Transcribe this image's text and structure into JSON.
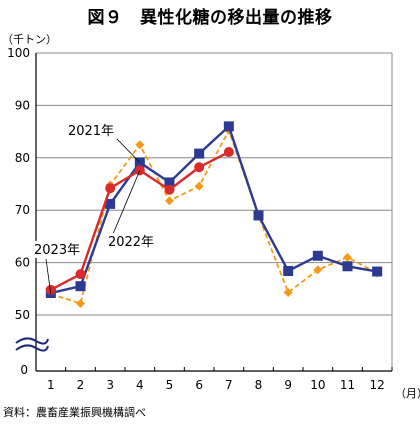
{
  "title": "図９　異性化糖の移出量の推移",
  "y_unit": "（千トン）",
  "x_unit": "（月）",
  "source": "資料：農畜産業振興機構調べ",
  "colors": {
    "2021": "#2c3a92",
    "2022": "#d92b2b",
    "2023": "#f39a1c"
  },
  "chart_data": {
    "type": "line",
    "x": [
      1,
      2,
      3,
      4,
      5,
      6,
      7,
      8,
      9,
      10,
      11,
      12
    ],
    "xlabel": "（月）",
    "ylabel": "（千トン）",
    "ylim": [
      50,
      100
    ],
    "yticks": [
      50,
      60,
      70,
      80,
      90,
      100
    ],
    "axis_break": true,
    "axis_zero_label": "0",
    "grid": "horizontal",
    "series": [
      {
        "name": "2021年",
        "marker": "square",
        "line": "solid",
        "values": [
          54.2,
          55.5,
          71.2,
          79.1,
          75.3,
          80.8,
          86.0,
          69.0,
          58.4,
          61.3,
          59.3,
          58.3
        ]
      },
      {
        "name": "2022年",
        "marker": "circle",
        "line": "solid",
        "values": [
          54.8,
          57.8,
          74.2,
          77.6,
          73.9,
          78.2,
          81.1,
          null,
          null,
          null,
          null,
          null
        ]
      },
      {
        "name": "2023年",
        "marker": "diamond",
        "line": "dashed",
        "values": [
          54.0,
          52.2,
          74.8,
          82.5,
          71.8,
          74.6,
          85.2,
          69.0,
          54.3,
          58.6,
          61.0,
          58.0
        ]
      }
    ]
  }
}
